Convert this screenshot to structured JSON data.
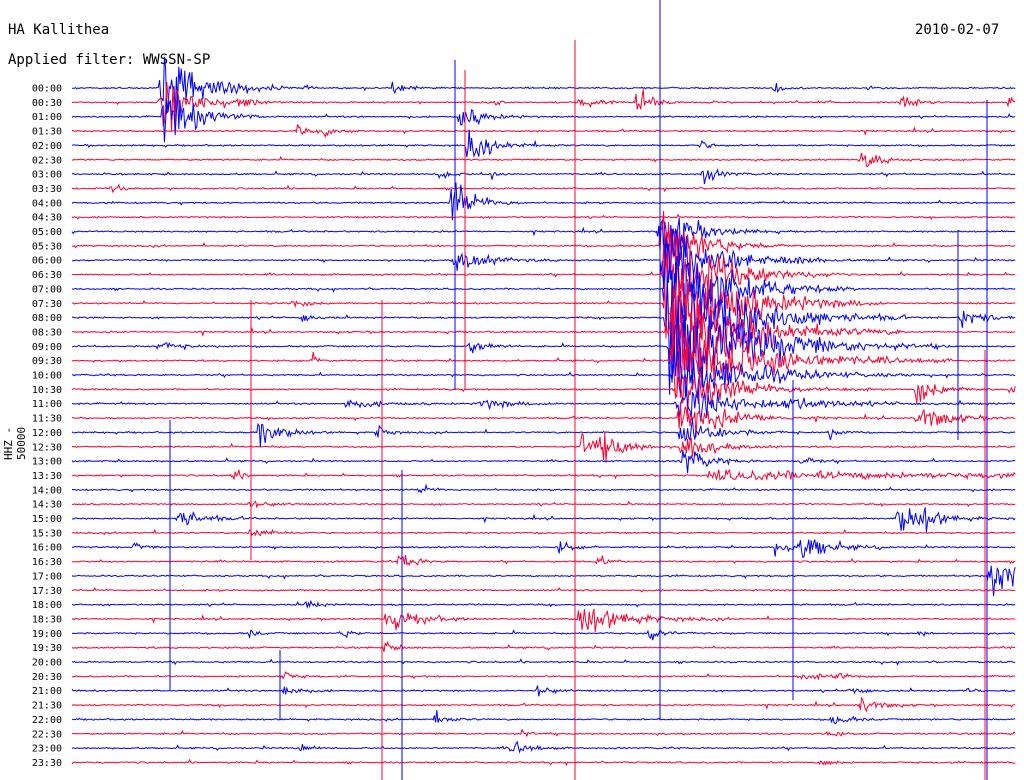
{
  "header": {
    "station": "HA Kallithea",
    "date": "2010-02-07",
    "filter_text": "Applied filter: WWSSN-SP",
    "channel": "HHZ - 50000"
  },
  "colors": {
    "blue": "#0000ff",
    "red": "#ff0030"
  },
  "chart_data": {
    "type": "line",
    "title": "HA Kallithea",
    "ylabel": "HHZ - 50000",
    "ytick_labels": [
      "00:00",
      "00:30",
      "01:00",
      "01:30",
      "02:00",
      "02:30",
      "03:00",
      "03:30",
      "04:00",
      "04:30",
      "05:00",
      "05:30",
      "06:00",
      "06:30",
      "07:00",
      "07:30",
      "08:00",
      "08:30",
      "09:00",
      "09:30",
      "10:00",
      "10:30",
      "11:00",
      "11:30",
      "12:00",
      "12:30",
      "13:00",
      "13:30",
      "14:00",
      "14:30",
      "15:00",
      "15:30",
      "16:00",
      "16:30",
      "17:00",
      "17:30",
      "18:00",
      "18:30",
      "19:00",
      "19:30",
      "20:00",
      "20:30",
      "21:00",
      "21:30",
      "22:00",
      "22:30",
      "23:00",
      "23:30"
    ],
    "trace_colors": [
      "blue",
      "red"
    ],
    "grid": false,
    "legend": "none"
  }
}
